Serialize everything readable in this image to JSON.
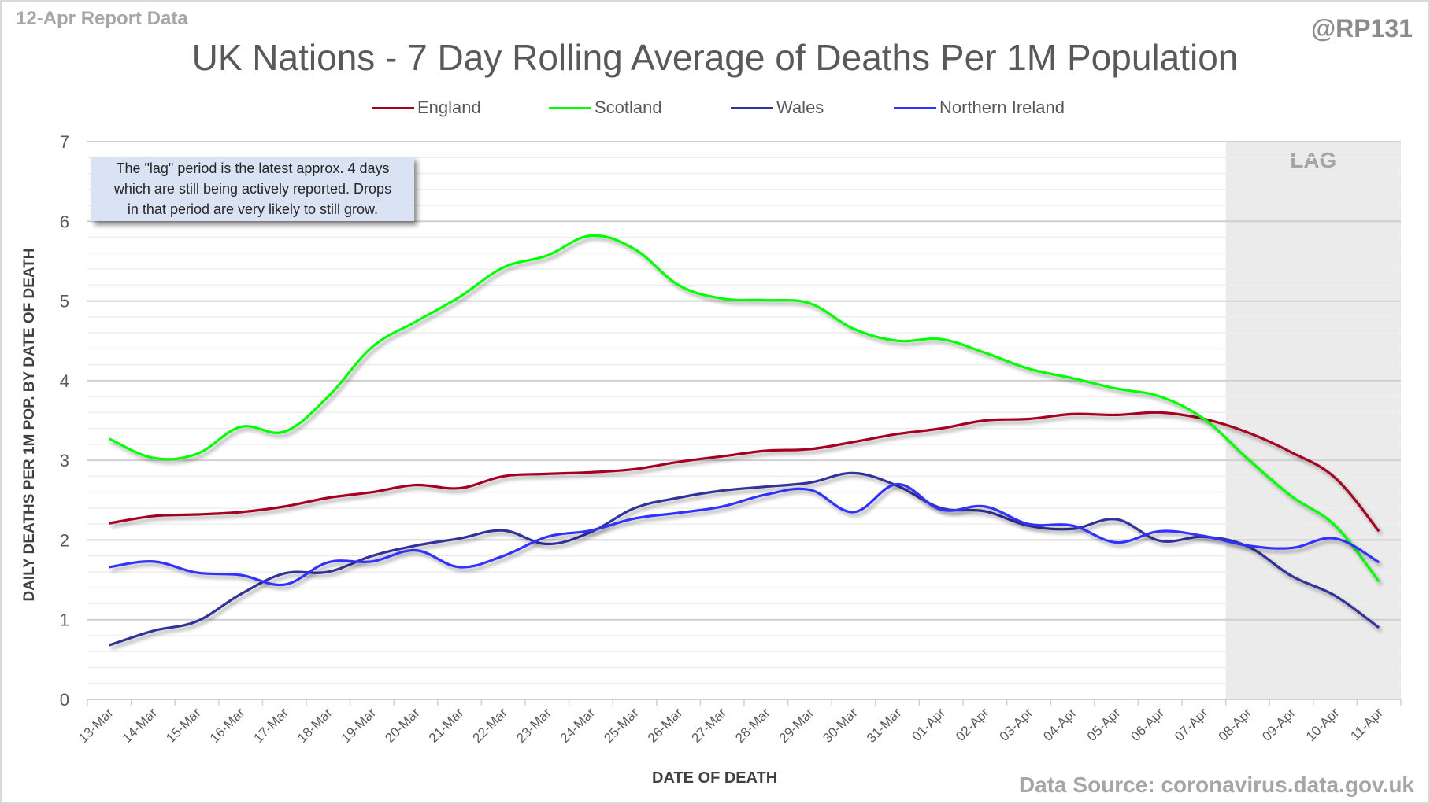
{
  "header": {
    "report_label": "12-Apr Report Data",
    "handle": "@RP131",
    "source": "Data Source: coronavirus.data.gov.uk"
  },
  "note": {
    "lines": [
      "The \"lag\" period is the latest approx. 4 days",
      "which are still being actively reported.  Drops",
      "in that period are very likely to still grow."
    ]
  },
  "chart_data": {
    "type": "line",
    "title": "UK Nations - 7 Day Rolling Average of Deaths Per 1M Population",
    "xlabel": "DATE OF DEATH",
    "ylabel": "DAILY DEATHS PER 1M POP. BY DATE OF DEATH",
    "ylim": [
      0,
      7
    ],
    "yticks": [
      0,
      1,
      2,
      3,
      4,
      5,
      6,
      7
    ],
    "minor_grid_step": 0.2,
    "grid": true,
    "legend_position": "top-center",
    "lag_region": {
      "label": "LAG",
      "start": "08-Apr",
      "end": "11-Apr"
    },
    "categories": [
      "13-Mar",
      "14-Mar",
      "15-Mar",
      "16-Mar",
      "17-Mar",
      "18-Mar",
      "19-Mar",
      "20-Mar",
      "21-Mar",
      "22-Mar",
      "23-Mar",
      "24-Mar",
      "25-Mar",
      "26-Mar",
      "27-Mar",
      "28-Mar",
      "29-Mar",
      "30-Mar",
      "31-Mar",
      "01-Apr",
      "02-Apr",
      "03-Apr",
      "04-Apr",
      "05-Apr",
      "06-Apr",
      "07-Apr",
      "08-Apr",
      "09-Apr",
      "10-Apr",
      "11-Apr"
    ],
    "series": [
      {
        "name": "England",
        "color": "#A50021",
        "values": [
          2.21,
          2.3,
          2.32,
          2.35,
          2.42,
          2.53,
          2.6,
          2.69,
          2.65,
          2.8,
          2.83,
          2.85,
          2.89,
          2.98,
          3.05,
          3.12,
          3.14,
          3.23,
          3.33,
          3.4,
          3.5,
          3.52,
          3.58,
          3.57,
          3.6,
          3.52,
          3.35,
          3.1,
          2.78,
          2.11
        ]
      },
      {
        "name": "Scotland",
        "color": "#00FF00",
        "values": [
          3.27,
          3.03,
          3.08,
          3.42,
          3.36,
          3.8,
          4.42,
          4.74,
          5.05,
          5.42,
          5.57,
          5.82,
          5.65,
          5.2,
          5.03,
          5.01,
          4.97,
          4.65,
          4.5,
          4.52,
          4.35,
          4.15,
          4.03,
          3.9,
          3.8,
          3.52,
          3.02,
          2.55,
          2.18,
          1.48
        ]
      },
      {
        "name": "Wales",
        "color": "#333399",
        "values": [
          0.68,
          0.86,
          0.98,
          1.32,
          1.58,
          1.6,
          1.8,
          1.93,
          2.02,
          2.12,
          1.95,
          2.1,
          2.4,
          2.53,
          2.62,
          2.67,
          2.72,
          2.84,
          2.68,
          2.4,
          2.36,
          2.18,
          2.14,
          2.26,
          1.99,
          2.04,
          1.92,
          1.55,
          1.3,
          0.9
        ]
      },
      {
        "name": "Northern Ireland",
        "color": "#3333FF",
        "values": [
          1.66,
          1.73,
          1.59,
          1.56,
          1.44,
          1.72,
          1.73,
          1.87,
          1.66,
          1.8,
          2.04,
          2.12,
          2.27,
          2.34,
          2.42,
          2.57,
          2.63,
          2.35,
          2.7,
          2.38,
          2.42,
          2.2,
          2.18,
          1.97,
          2.11,
          2.05,
          1.93,
          1.9,
          2.02,
          1.72
        ]
      }
    ]
  }
}
